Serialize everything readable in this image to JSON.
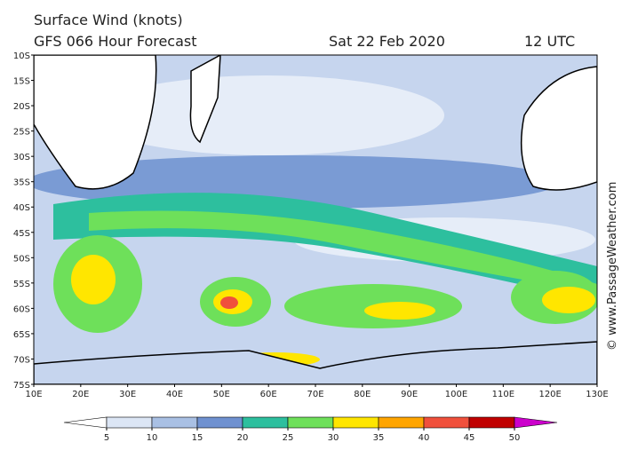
{
  "header": {
    "title": "Surface Wind (knots)",
    "model": "GFS 066 Hour Forecast",
    "date": "Sat 22 Feb 2020",
    "time": "12 UTC"
  },
  "lat_labels": [
    "10S",
    "15S",
    "20S",
    "25S",
    "30S",
    "35S",
    "40S",
    "45S",
    "50S",
    "55S",
    "60S",
    "65S",
    "70S",
    "75S"
  ],
  "lon_labels": [
    "10E",
    "20E",
    "30E",
    "40E",
    "50E",
    "60E",
    "70E",
    "80E",
    "90E",
    "100E",
    "110E",
    "120E",
    "130E"
  ],
  "colorbar": {
    "ticks": [
      5,
      10,
      15,
      20,
      25,
      30,
      35,
      40,
      45,
      50
    ],
    "colors": [
      "#ffffff",
      "#dce6f5",
      "#a9c0e4",
      "#6f91d0",
      "#2dbf9e",
      "#6ee05a",
      "#ffe600",
      "#ffa500",
      "#f0503c",
      "#c00000",
      "#cc00cc"
    ]
  },
  "watermark": "© www.PassageWeather.com"
}
